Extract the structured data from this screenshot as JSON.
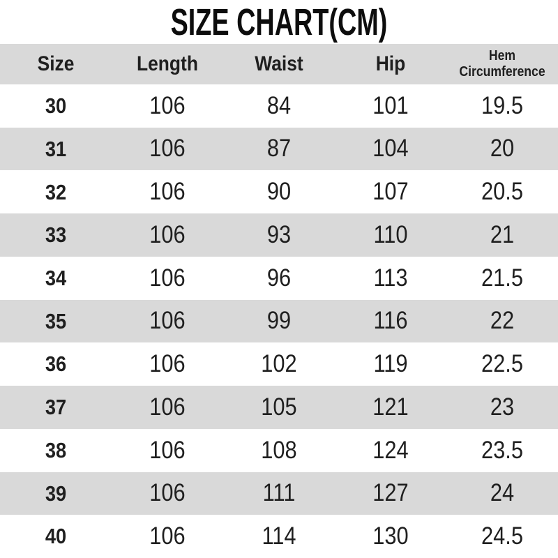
{
  "chart_data": {
    "type": "table",
    "title": "SIZE CHART(CM)",
    "unit": "CM",
    "columns": [
      "Size",
      "Length",
      "Waist",
      "Hip",
      "Hem Circumference"
    ],
    "rows": [
      [
        30,
        106,
        84,
        101,
        19.5
      ],
      [
        31,
        106,
        87,
        104,
        20
      ],
      [
        32,
        106,
        90,
        107,
        20.5
      ],
      [
        33,
        106,
        93,
        110,
        21
      ],
      [
        34,
        106,
        96,
        113,
        21.5
      ],
      [
        35,
        106,
        99,
        116,
        22
      ],
      [
        36,
        106,
        102,
        119,
        22.5
      ],
      [
        37,
        106,
        105,
        121,
        23
      ],
      [
        38,
        106,
        108,
        124,
        23.5
      ],
      [
        39,
        106,
        111,
        127,
        24
      ],
      [
        40,
        106,
        114,
        130,
        24.5
      ]
    ],
    "layout_hints": {
      "row_striping": "alternate rows shaded starting with second data row",
      "first_column_bold": true,
      "header_shaded": true
    }
  },
  "colors": {
    "background": "#ffffff",
    "row_shade": "#d9d9d9",
    "text": "#1f1f1f",
    "title_text": "#0d0d0d"
  }
}
